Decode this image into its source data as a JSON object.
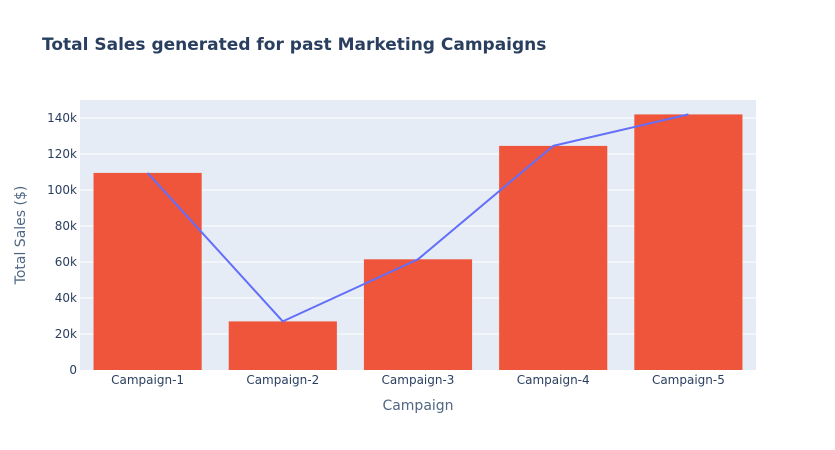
{
  "chart_data": {
    "type": "bar",
    "title": "Total Sales generated for past Marketing Campaigns",
    "xlabel": "Campaign",
    "ylabel": "Total Sales ($)",
    "categories": [
      "Campaign-1",
      "Campaign-2",
      "Campaign-3",
      "Campaign-4",
      "Campaign-5"
    ],
    "ylim": [
      0,
      150000
    ],
    "yticks": [
      0,
      20000,
      40000,
      60000,
      80000,
      100000,
      120000,
      140000
    ],
    "ytick_labels": [
      "0",
      "20k",
      "40k",
      "60k",
      "80k",
      "100k",
      "120k",
      "140k"
    ],
    "series": [
      {
        "type": "bar",
        "values": [
          109500,
          27000,
          61500,
          124500,
          142000
        ],
        "color": "#ef553b"
      },
      {
        "type": "line",
        "values": [
          109500,
          27000,
          61500,
          124500,
          142000
        ],
        "color": "#636efa"
      }
    ],
    "grid": true,
    "plot_background": "#e5ecf6",
    "legend": "none"
  }
}
